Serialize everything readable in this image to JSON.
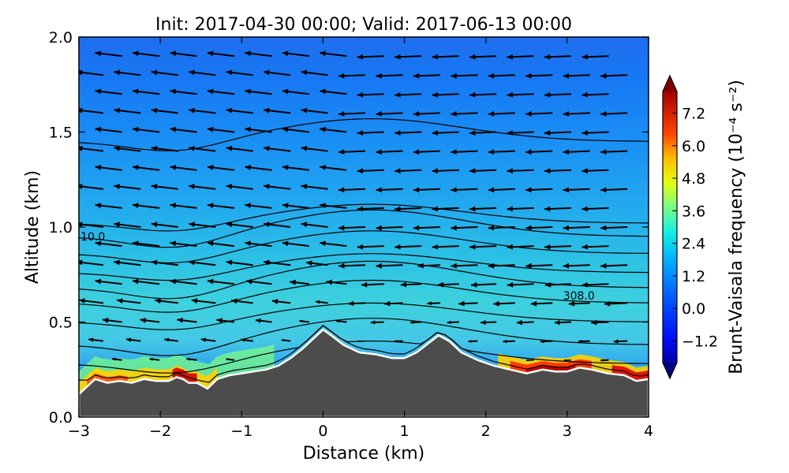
{
  "chart_data": {
    "type": "heatmap",
    "title": "Init: 2017-04-30 00:00; Valid: 2017-06-13 00:00",
    "xlabel": "Distance (km)",
    "ylabel": "Altitude (km)",
    "xlim": [
      -3,
      4
    ],
    "ylim": [
      0,
      2
    ],
    "xticks": [
      "−3",
      "−2",
      "−1",
      "0",
      "1",
      "2",
      "3",
      "4"
    ],
    "yticks": [
      "0.0",
      "0.5",
      "1.0",
      "1.5",
      "2.0"
    ],
    "colorbar": {
      "label": "Brunt-Vaisala frequency (10⁻⁴ s⁻²)",
      "ticks": [
        "−1.2",
        "0.0",
        "1.2",
        "2.4",
        "3.6",
        "4.8",
        "6.0",
        "7.2"
      ],
      "range": [
        -2.0,
        8.0
      ],
      "colormap": "jet",
      "extend": "both"
    },
    "contour_labels": [
      {
        "text": "10.0",
        "x": -2.98,
        "y": 0.95
      },
      {
        "text": "308.0",
        "x": 2.95,
        "y": 0.64
      }
    ],
    "terrain": {
      "x": [
        -3.0,
        -2.9,
        -2.8,
        -2.65,
        -2.5,
        -2.35,
        -2.2,
        -2.05,
        -1.9,
        -1.8,
        -1.72,
        -1.65,
        -1.55,
        -1.42,
        -1.3,
        -1.15,
        -1.0,
        -0.85,
        -0.7,
        -0.55,
        -0.4,
        -0.25,
        -0.1,
        0.0,
        0.1,
        0.25,
        0.45,
        0.65,
        0.85,
        1.0,
        1.15,
        1.3,
        1.42,
        1.55,
        1.7,
        1.9,
        2.1,
        2.3,
        2.5,
        2.7,
        2.85,
        3.0,
        3.15,
        3.3,
        3.5,
        3.7,
        3.85,
        4.0
      ],
      "y": [
        0.12,
        0.16,
        0.2,
        0.18,
        0.19,
        0.18,
        0.2,
        0.19,
        0.19,
        0.21,
        0.2,
        0.18,
        0.18,
        0.15,
        0.2,
        0.22,
        0.23,
        0.24,
        0.25,
        0.27,
        0.31,
        0.36,
        0.42,
        0.46,
        0.43,
        0.38,
        0.34,
        0.33,
        0.31,
        0.31,
        0.34,
        0.39,
        0.43,
        0.4,
        0.34,
        0.3,
        0.27,
        0.25,
        0.23,
        0.25,
        0.24,
        0.24,
        0.26,
        0.25,
        0.23,
        0.22,
        0.19,
        0.2
      ]
    },
    "wind_vectors": "horizontal flow toward negative x (leftward), strongest aloft, weak near terrain"
  }
}
